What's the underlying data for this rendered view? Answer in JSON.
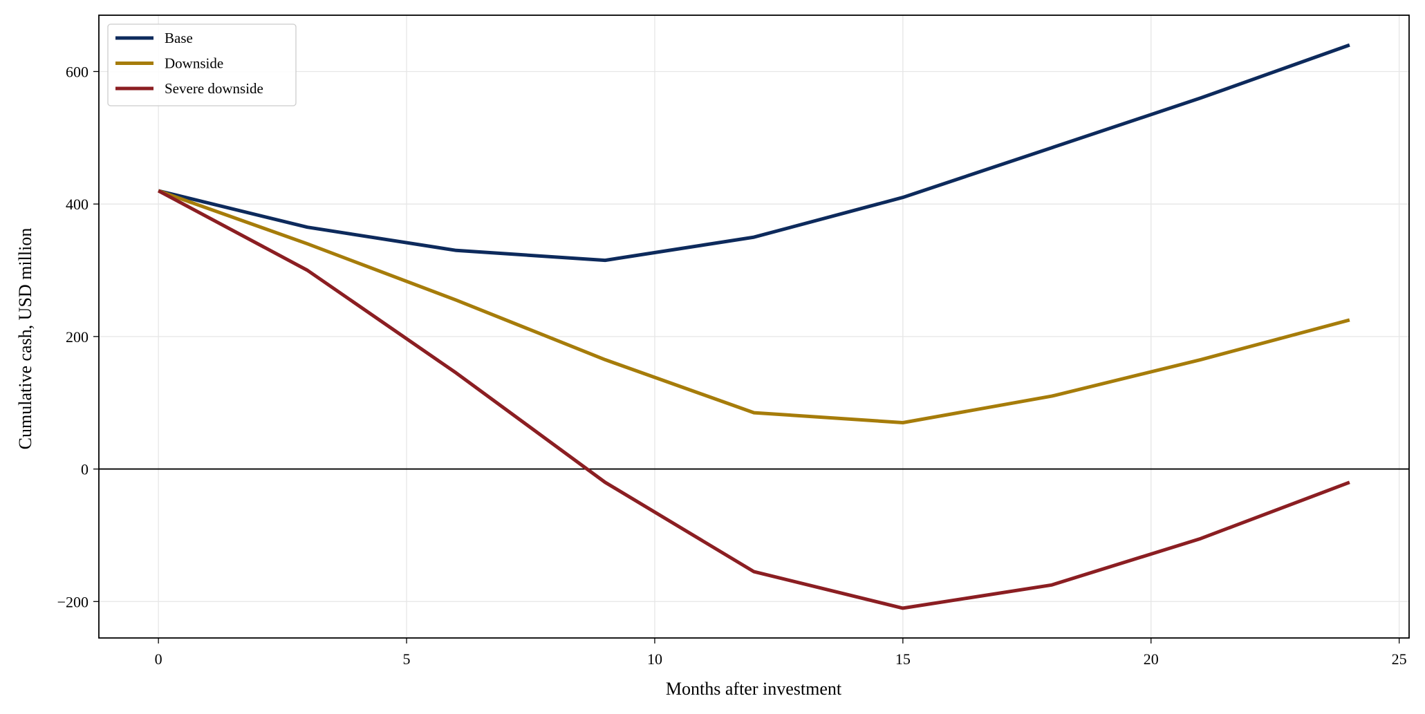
{
  "chart_data": {
    "type": "line",
    "xlabel": "Months after investment",
    "ylabel": "Cumulative cash, USD million",
    "xlim": [
      -1.2,
      25.2
    ],
    "ylim": [
      -255,
      685
    ],
    "xticks": [
      0,
      5,
      10,
      15,
      20,
      25
    ],
    "yticks": [
      -200,
      0,
      200,
      400,
      600
    ],
    "xtick_labels": [
      "0",
      "5",
      "10",
      "15",
      "20",
      "25"
    ],
    "ytick_labels": [
      "−200",
      "0",
      "200",
      "400",
      "600"
    ],
    "grid": true,
    "zero_line": true,
    "legend_position": "top-left",
    "x": [
      0,
      3,
      6,
      9,
      12,
      15,
      18,
      21,
      24
    ],
    "series": [
      {
        "name": "Base",
        "color": "#0d2a5c",
        "values": [
          420,
          365,
          330,
          315,
          350,
          410,
          485,
          560,
          640
        ]
      },
      {
        "name": "Downside",
        "color": "#a67c0a",
        "values": [
          420,
          340,
          255,
          165,
          85,
          70,
          110,
          165,
          225
        ]
      },
      {
        "name": "Severe downside",
        "color": "#8b1e22",
        "values": [
          420,
          300,
          145,
          -20,
          -155,
          -210,
          -175,
          -105,
          -20
        ]
      }
    ]
  }
}
